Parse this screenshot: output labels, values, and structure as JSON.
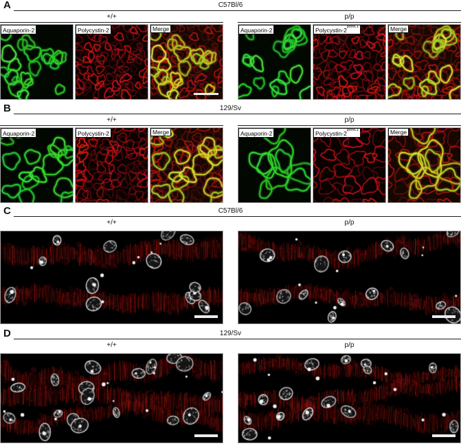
{
  "panels": [
    {
      "letter": "A",
      "strain": "C57Bl/6",
      "groups": [
        {
          "genotype": "+/+",
          "images": [
            {
              "label": "Aquaporin-2",
              "type": "green",
              "seed": 101,
              "count": 20,
              "scale": 1
            },
            {
              "label": "Polycystin-2",
              "type": "mesh",
              "seed": 102,
              "meshScale": 1
            },
            {
              "label": "Merge",
              "type": "merge",
              "seed": 101,
              "meshSeed": 102,
              "count": 20,
              "scale": 1,
              "meshScale": 1,
              "scalebar": true
            }
          ]
        },
        {
          "genotype": "p/p",
          "images": [
            {
              "label": "Aquaporin-2",
              "type": "green",
              "seed": 111,
              "count": 18,
              "scale": 1.12
            },
            {
              "label": "Polycystin-2",
              "sup": "poreL1",
              "type": "mesh",
              "seed": 112,
              "meshScale": 1.05
            },
            {
              "label": "Merge",
              "type": "merge",
              "seed": 111,
              "meshSeed": 112,
              "count": 18,
              "scale": 1.12,
              "meshScale": 1.05
            }
          ]
        }
      ]
    },
    {
      "letter": "B",
      "strain": "129/Sv",
      "groups": [
        {
          "genotype": "+/+",
          "images": [
            {
              "label": "Aquaporin-2",
              "type": "green",
              "seed": 201,
              "count": 16,
              "scale": 1.3
            },
            {
              "label": "Polycystin-2",
              "type": "mesh",
              "seed": 202,
              "meshScale": 1.15
            },
            {
              "label": "Merge",
              "type": "merge",
              "seed": 201,
              "meshSeed": 202,
              "count": 16,
              "scale": 1.3,
              "meshScale": 1.15
            }
          ]
        },
        {
          "genotype": "p/p",
          "images": [
            {
              "label": "Aquaporin-2",
              "type": "green",
              "seed": 211,
              "count": 9,
              "scale": 2.2
            },
            {
              "label": "Polycystin-2",
              "sup": "poreL1",
              "type": "mesh",
              "seed": 212,
              "meshScale": 1.75
            },
            {
              "label": "Merge",
              "type": "merge",
              "seed": 211,
              "meshSeed": 212,
              "count": 9,
              "scale": 2.2,
              "meshScale": 1.75
            }
          ]
        }
      ]
    },
    {
      "letter": "C",
      "strain": "C57Bl/6",
      "groups": [
        {
          "genotype": "+/+",
          "images": [
            {
              "type": "tissue",
              "seed": 301,
              "bands": 2,
              "nuclei": 13,
              "dots": 8,
              "scalebar": true
            }
          ]
        },
        {
          "genotype": "p/p",
          "images": [
            {
              "type": "tissue",
              "seed": 313,
              "bands": 2,
              "nuclei": 14,
              "dots": 9,
              "scalebar": true
            }
          ]
        }
      ]
    },
    {
      "letter": "D",
      "strain": "129/Sv",
      "groups": [
        {
          "genotype": "+/+",
          "images": [
            {
              "type": "tissue",
              "seed": 402,
              "bands": 3,
              "nuclei": 18,
              "dots": 14,
              "scalebar": true
            }
          ]
        },
        {
          "genotype": "p/p",
          "images": [
            {
              "type": "tissue",
              "seed": 412,
              "bands": 3,
              "nuclei": 14,
              "dots": 12,
              "scalebar": true
            }
          ]
        }
      ]
    }
  ],
  "colors": {
    "aquaporin_green": "#3cc23c",
    "polycystin_red": "#d21c1c",
    "merge_yellow": "#cfc232",
    "nuclei_white": "#e8e8e8",
    "background": "#000000",
    "rule": "#1c1c1c"
  }
}
